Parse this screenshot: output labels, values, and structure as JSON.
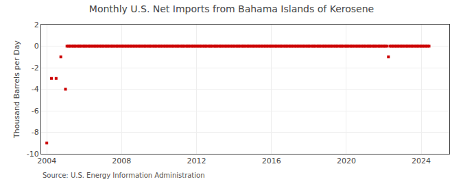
{
  "chart_data": {
    "type": "scatter",
    "title": "Monthly U.S. Net Imports from Bahama Islands of Kerosene",
    "y_label": "Thousand Barrels per Day",
    "annotations": [
      "Source: U.S. Energy Information Administration"
    ],
    "color": "#cc0000",
    "marker": "square",
    "grid": true,
    "xlim": [
      2003.7,
      2025.5
    ],
    "xticks": [
      2004,
      2008,
      2012,
      2016,
      2020,
      2024
    ],
    "ylim": [
      -10,
      2
    ],
    "yticks": [
      -10,
      -8,
      -6,
      -4,
      -2,
      0,
      2
    ],
    "x": [
      2004.0,
      2004.25,
      2004.5,
      2004.75,
      2005.0,
      2005.08,
      2005.17,
      2005.25,
      2005.33,
      2005.42,
      2005.5,
      2005.58,
      2005.67,
      2005.75,
      2005.83,
      2005.92,
      2006.0,
      2006.08,
      2006.17,
      2006.25,
      2006.33,
      2006.42,
      2006.5,
      2006.58,
      2006.67,
      2006.75,
      2006.83,
      2006.92,
      2007.0,
      2007.08,
      2007.17,
      2007.25,
      2007.33,
      2007.42,
      2007.5,
      2007.58,
      2007.67,
      2007.75,
      2007.83,
      2007.92,
      2008.0,
      2008.08,
      2008.17,
      2008.25,
      2008.33,
      2008.42,
      2008.5,
      2008.58,
      2008.67,
      2008.75,
      2008.83,
      2008.92,
      2009.0,
      2009.08,
      2009.17,
      2009.25,
      2009.33,
      2009.42,
      2009.5,
      2009.58,
      2009.67,
      2009.75,
      2009.83,
      2009.92,
      2010.0,
      2010.08,
      2010.17,
      2010.25,
      2010.33,
      2010.42,
      2010.5,
      2010.58,
      2010.67,
      2010.75,
      2010.83,
      2010.92,
      2011.0,
      2011.08,
      2011.17,
      2011.25,
      2011.33,
      2011.42,
      2011.5,
      2011.58,
      2011.67,
      2011.75,
      2011.83,
      2011.92,
      2012.0,
      2012.08,
      2012.17,
      2012.25,
      2012.33,
      2012.42,
      2012.5,
      2012.58,
      2012.67,
      2012.75,
      2012.83,
      2012.92,
      2013.0,
      2013.08,
      2013.17,
      2013.25,
      2013.33,
      2013.42,
      2013.5,
      2013.58,
      2013.67,
      2013.75,
      2013.83,
      2013.92,
      2014.0,
      2014.08,
      2014.17,
      2014.25,
      2014.33,
      2014.42,
      2014.5,
      2014.58,
      2014.67,
      2014.75,
      2014.83,
      2014.92,
      2015.0,
      2015.08,
      2015.17,
      2015.25,
      2015.33,
      2015.42,
      2015.5,
      2015.58,
      2015.67,
      2015.75,
      2015.83,
      2015.92,
      2016.0,
      2016.08,
      2016.17,
      2016.25,
      2016.33,
      2016.42,
      2016.5,
      2016.58,
      2016.67,
      2016.75,
      2016.83,
      2016.92,
      2017.0,
      2017.08,
      2017.17,
      2017.25,
      2017.33,
      2017.42,
      2017.5,
      2017.58,
      2017.67,
      2017.75,
      2017.83,
      2017.92,
      2018.0,
      2018.08,
      2018.17,
      2018.25,
      2018.33,
      2018.42,
      2018.5,
      2018.58,
      2018.67,
      2018.75,
      2018.83,
      2018.92,
      2019.0,
      2019.08,
      2019.17,
      2019.25,
      2019.33,
      2019.42,
      2019.5,
      2019.58,
      2019.67,
      2019.75,
      2019.83,
      2019.92,
      2020.0,
      2020.08,
      2020.17,
      2020.25,
      2020.33,
      2020.42,
      2020.5,
      2020.58,
      2020.67,
      2020.75,
      2020.83,
      2020.92,
      2021.0,
      2021.08,
      2021.17,
      2021.25,
      2021.33,
      2021.42,
      2021.5,
      2021.58,
      2021.67,
      2021.75,
      2021.83,
      2021.92,
      2022.0,
      2022.08,
      2022.17,
      2022.25,
      2022.33,
      2022.42,
      2022.5,
      2022.58,
      2022.67,
      2022.75,
      2022.83,
      2022.92,
      2023.0,
      2023.08,
      2023.17,
      2023.25,
      2023.33,
      2023.42,
      2023.5,
      2023.58,
      2023.67,
      2023.75,
      2023.83,
      2023.92,
      2024.0,
      2024.08,
      2024.17,
      2024.25,
      2024.33,
      2024.42
    ],
    "values": [
      -9.0,
      -3.0,
      -3.0,
      -1.0,
      -4.0,
      0.0,
      0.0,
      0.0,
      0.0,
      0.0,
      0.0,
      0.0,
      0.0,
      0.0,
      0.0,
      0.0,
      0.0,
      0.0,
      0.0,
      0.0,
      0.0,
      0.0,
      0.0,
      0.0,
      0.0,
      0.0,
      0.0,
      0.0,
      0.0,
      0.0,
      0.0,
      0.0,
      0.0,
      0.0,
      0.0,
      0.0,
      0.0,
      0.0,
      0.0,
      0.0,
      0.0,
      0.0,
      0.0,
      0.0,
      0.0,
      0.0,
      0.0,
      0.0,
      0.0,
      0.0,
      0.0,
      0.0,
      0.0,
      0.0,
      0.0,
      0.0,
      0.0,
      0.0,
      0.0,
      0.0,
      0.0,
      0.0,
      0.0,
      0.0,
      0.0,
      0.0,
      0.0,
      0.0,
      0.0,
      0.0,
      0.0,
      0.0,
      0.0,
      0.0,
      0.0,
      0.0,
      0.0,
      0.0,
      0.0,
      0.0,
      0.0,
      0.0,
      0.0,
      0.0,
      0.0,
      0.0,
      0.0,
      0.0,
      0.0,
      0.0,
      0.0,
      0.0,
      0.0,
      0.0,
      0.0,
      0.0,
      0.0,
      0.0,
      0.0,
      0.0,
      0.0,
      0.0,
      0.0,
      0.0,
      0.0,
      0.0,
      0.0,
      0.0,
      0.0,
      0.0,
      0.0,
      0.0,
      0.0,
      0.0,
      0.0,
      0.0,
      0.0,
      0.0,
      0.0,
      0.0,
      0.0,
      0.0,
      0.0,
      0.0,
      0.0,
      0.0,
      0.0,
      0.0,
      0.0,
      0.0,
      0.0,
      0.0,
      0.0,
      0.0,
      0.0,
      0.0,
      0.0,
      0.0,
      0.0,
      0.0,
      0.0,
      0.0,
      0.0,
      0.0,
      0.0,
      0.0,
      0.0,
      0.0,
      0.0,
      0.0,
      0.0,
      0.0,
      0.0,
      0.0,
      0.0,
      0.0,
      0.0,
      0.0,
      0.0,
      0.0,
      0.0,
      0.0,
      0.0,
      0.0,
      0.0,
      0.0,
      0.0,
      0.0,
      0.0,
      0.0,
      0.0,
      0.0,
      0.0,
      0.0,
      0.0,
      0.0,
      0.0,
      0.0,
      0.0,
      0.0,
      0.0,
      0.0,
      0.0,
      0.0,
      0.0,
      0.0,
      0.0,
      0.0,
      0.0,
      0.0,
      0.0,
      0.0,
      0.0,
      0.0,
      0.0,
      0.0,
      0.0,
      0.0,
      0.0,
      0.0,
      0.0,
      0.0,
      0.0,
      0.0,
      0.0,
      0.0,
      0.0,
      0.0,
      0.0,
      0.0,
      0.0,
      -1.0,
      0.0,
      0.0,
      0.0,
      0.0,
      0.0,
      0.0,
      0.0,
      0.0,
      0.0,
      0.0,
      0.0,
      0.0,
      0.0,
      0.0,
      0.0,
      0.0,
      0.0,
      0.0,
      0.0,
      0.0,
      0.0,
      0.0,
      0.0,
      0.0,
      0.0,
      0.0
    ]
  }
}
